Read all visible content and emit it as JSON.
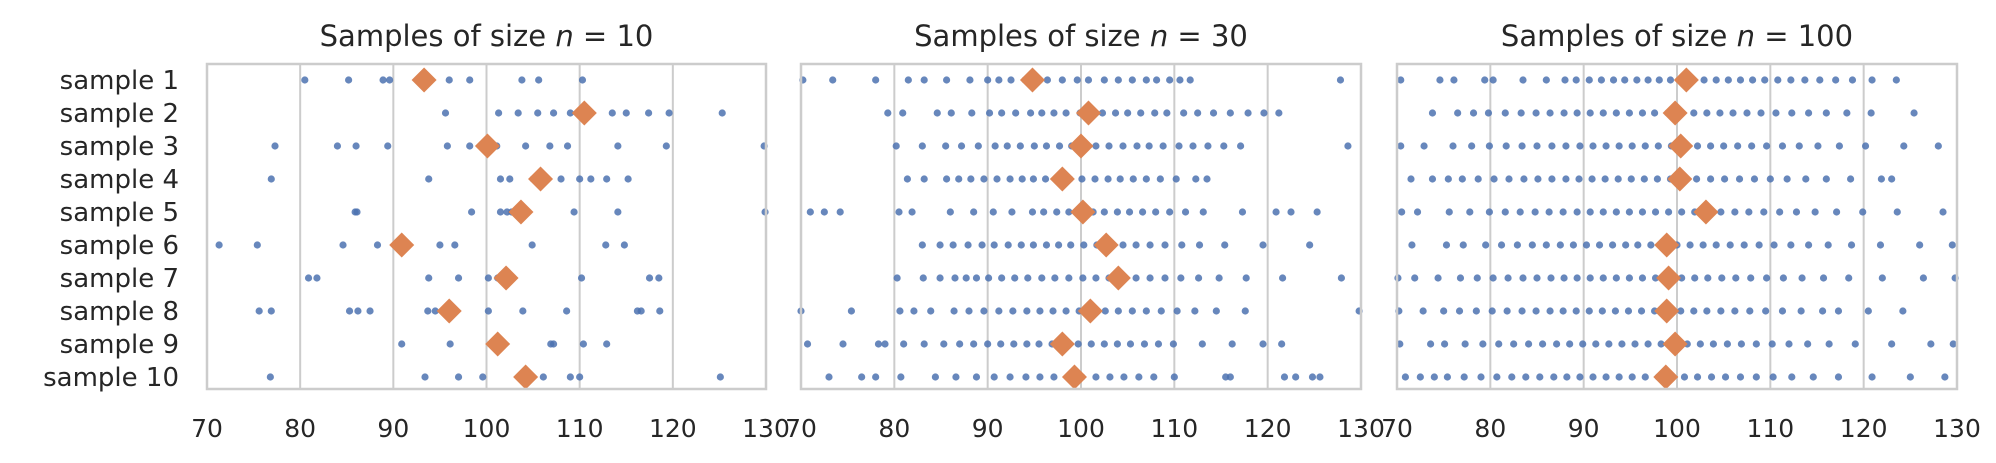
{
  "chart_data": [
    {
      "type": "scatter",
      "title": "Samples of size n = 10",
      "title_text": "Samples of size ",
      "title_var": "n",
      "title_eq": " = 10",
      "categories": [
        "sample 1",
        "sample 2",
        "sample 3",
        "sample 4",
        "sample 5",
        "sample 6",
        "sample 7",
        "sample 8",
        "sample 9",
        "sample 10"
      ],
      "xlim": [
        70,
        130
      ],
      "xticks": [
        70,
        80,
        90,
        100,
        110,
        120,
        130
      ],
      "grid": "vertical",
      "samples": [
        [
          80.5,
          85.2,
          88.9,
          89.6,
          93.1,
          96.0,
          98.2,
          103.8,
          105.6,
          110.3
        ],
        [
          95.6,
          101.3,
          103.4,
          105.5,
          107.2,
          109.0,
          111.0,
          113.5,
          115.0,
          117.4,
          119.6,
          125.3
        ],
        [
          77.3,
          84.0,
          86.0,
          89.4,
          95.8,
          98.2,
          99.4,
          101.1,
          104.2,
          106.8,
          108.7,
          114.1,
          119.3,
          129.8
        ],
        [
          76.9,
          93.8,
          101.5,
          102.5,
          105.0,
          108.0,
          110.0,
          111.2,
          112.9,
          115.2
        ],
        [
          85.9,
          86.1,
          98.4,
          101.5,
          102.2,
          102.7,
          109.4,
          114.1,
          129.9
        ],
        [
          71.3,
          75.4,
          84.6,
          88.3,
          91.0,
          95.0,
          96.6,
          104.9,
          112.8,
          114.8
        ],
        [
          80.9,
          81.8,
          93.8,
          97.0,
          100.2,
          101.2,
          102.4,
          110.2,
          117.5,
          118.5
        ],
        [
          75.6,
          76.9,
          85.3,
          86.2,
          87.5,
          93.7,
          94.5,
          100.2,
          103.9,
          108.6,
          116.2,
          116.6,
          118.6
        ],
        [
          90.9,
          96.1,
          101.0,
          101.8,
          106.9,
          107.2,
          110.4,
          112.9
        ],
        [
          76.8,
          93.4,
          97.0,
          99.6,
          103.6,
          106.1,
          109.0,
          110.0,
          125.1
        ]
      ],
      "means": [
        93.3,
        110.5,
        100.1,
        105.8,
        103.7,
        90.9,
        102.1,
        96.0,
        101.2,
        104.2
      ]
    },
    {
      "type": "scatter",
      "title": "Samples of size n = 30",
      "title_text": "Samples of size ",
      "title_var": "n",
      "title_eq": " = 30",
      "categories": [
        "sample 1",
        "sample 2",
        "sample 3",
        "sample 4",
        "sample 5",
        "sample 6",
        "sample 7",
        "sample 8",
        "sample 9",
        "sample 10"
      ],
      "xlim": [
        70,
        130
      ],
      "xticks": [
        70,
        80,
        90,
        100,
        110,
        120,
        130
      ],
      "grid": "vertical",
      "samples": [
        [
          70.2,
          73.4,
          78.0,
          81.5,
          83.2,
          85.6,
          88.1,
          90.0,
          91.2,
          92.5,
          94.0,
          95.5,
          96.4,
          98.0,
          99.6,
          100.8,
          102.5,
          104.0,
          105.5,
          107.0,
          108.1,
          109.5,
          110.6,
          111.7,
          127.8
        ],
        [
          79.3,
          80.9,
          84.6,
          86.1,
          88.3,
          90.2,
          91.5,
          93.0,
          94.6,
          95.8,
          97.1,
          98.4,
          99.9,
          100.6,
          102.3,
          103.7,
          105.0,
          106.4,
          107.9,
          109.2,
          111.0,
          112.5,
          114.2,
          116.0,
          117.9,
          119.6,
          121.2
        ],
        [
          80.2,
          83.0,
          85.5,
          87.2,
          89.0,
          90.8,
          92.1,
          93.5,
          95.0,
          96.3,
          97.7,
          99.0,
          100.4,
          101.6,
          103.0,
          104.5,
          106.0,
          107.3,
          108.8,
          110.5,
          112.0,
          113.6,
          115.3,
          117.1,
          128.6
        ],
        [
          81.4,
          83.2,
          85.6,
          86.9,
          88.2,
          89.6,
          91.0,
          92.4,
          93.7,
          94.9,
          96.2,
          97.5,
          98.8,
          100.1,
          101.5,
          102.9,
          104.2,
          105.6,
          107.0,
          108.5,
          110.2,
          112.3,
          113.5
        ],
        [
          71.0,
          72.5,
          74.2,
          80.5,
          81.9,
          86.0,
          88.5,
          90.6,
          92.6,
          94.8,
          96.0,
          97.4,
          98.7,
          100.0,
          101.3,
          102.5,
          103.9,
          105.2,
          106.6,
          108.0,
          109.5,
          111.2,
          113.1,
          117.3,
          120.9,
          122.5,
          125.3
        ],
        [
          83.0,
          84.9,
          86.3,
          87.9,
          89.4,
          90.7,
          92.2,
          93.6,
          94.9,
          96.3,
          97.6,
          98.9,
          100.3,
          101.7,
          103.1,
          104.5,
          105.9,
          107.4,
          109.0,
          110.8,
          112.7,
          115.4,
          119.5,
          124.5
        ],
        [
          80.3,
          83.1,
          84.9,
          86.5,
          87.7,
          88.8,
          90.1,
          91.5,
          92.9,
          94.3,
          95.8,
          97.2,
          98.7,
          100.2,
          101.6,
          103.0,
          104.5,
          105.9,
          107.4,
          109.0,
          110.7,
          112.6,
          114.8,
          117.7,
          121.6,
          127.9
        ],
        [
          70.0,
          75.4,
          80.6,
          82.1,
          83.9,
          86.4,
          88.0,
          89.6,
          91.2,
          92.7,
          94.2,
          95.6,
          97.0,
          98.4,
          99.8,
          101.2,
          102.6,
          104.0,
          105.5,
          107.0,
          108.6,
          110.3,
          112.2,
          114.5,
          117.6,
          129.8
        ],
        [
          70.7,
          74.5,
          78.3,
          79.0,
          81.0,
          83.2,
          85.3,
          87.0,
          88.5,
          90.0,
          91.4,
          92.8,
          94.2,
          95.5,
          96.9,
          98.3,
          99.7,
          101.1,
          102.5,
          103.9,
          105.3,
          106.8,
          108.3,
          109.9,
          113.0,
          116.2,
          119.5,
          121.5
        ],
        [
          73.0,
          76.5,
          78.0,
          80.7,
          84.4,
          86.6,
          88.8,
          90.7,
          92.4,
          94.1,
          95.6,
          97.1,
          98.6,
          100.1,
          101.6,
          103.1,
          104.6,
          106.2,
          107.8,
          110.0,
          115.5,
          116.0,
          121.8,
          123.0,
          124.8,
          125.6
        ]
      ],
      "means": [
        94.8,
        100.8,
        100.0,
        98.0,
        100.2,
        102.7,
        104.0,
        101.0,
        98.0,
        99.3
      ]
    },
    {
      "type": "scatter",
      "title": "Samples of size n = 100",
      "title_text": "Samples of size ",
      "title_var": "n",
      "title_eq": " = 100",
      "categories": [
        "sample 1",
        "sample 2",
        "sample 3",
        "sample 4",
        "sample 5",
        "sample 6",
        "sample 7",
        "sample 8",
        "sample 9",
        "sample 10"
      ],
      "xlim": [
        70,
        130
      ],
      "xticks": [
        70,
        80,
        90,
        100,
        110,
        120,
        130
      ],
      "grid": "vertical",
      "samples": [
        [
          70.4,
          74.6,
          76.1,
          79.4,
          80.3,
          83.5,
          86.0,
          88.0,
          89.2,
          90.6,
          91.9,
          93.2,
          94.4,
          95.7,
          96.9,
          98.1,
          99.3,
          100.5,
          101.7,
          102.9,
          104.2,
          105.5,
          106.8,
          108.1,
          109.4,
          110.8,
          112.2,
          113.7,
          115.3,
          117.0,
          118.8,
          120.9,
          123.5
        ],
        [
          73.8,
          76.5,
          78.2,
          79.8,
          81.6,
          83.3,
          84.9,
          86.4,
          87.9,
          89.3,
          90.7,
          92.1,
          93.5,
          94.9,
          96.3,
          97.6,
          99.0,
          100.4,
          101.8,
          103.2,
          104.6,
          106.0,
          107.5,
          109.0,
          110.6,
          112.3,
          114.1,
          116.0,
          118.2,
          120.8,
          125.4
        ],
        [
          70.4,
          72.9,
          76.0,
          78.0,
          79.9,
          81.7,
          83.4,
          85.0,
          86.6,
          88.1,
          89.6,
          91.0,
          92.4,
          93.8,
          95.2,
          96.6,
          98.0,
          99.4,
          100.8,
          102.2,
          103.6,
          105.0,
          106.5,
          108.0,
          109.6,
          111.3,
          113.1,
          115.1,
          117.4,
          120.2,
          124.3,
          128.0
        ],
        [
          71.5,
          73.8,
          75.5,
          77.0,
          78.7,
          80.4,
          82.0,
          83.6,
          85.1,
          86.6,
          88.1,
          89.5,
          90.9,
          92.3,
          93.7,
          95.1,
          96.5,
          97.9,
          99.3,
          100.7,
          102.1,
          103.6,
          105.1,
          106.7,
          108.3,
          110.0,
          111.8,
          113.8,
          116.0,
          118.6,
          121.9,
          123.0
        ],
        [
          70.5,
          72.2,
          75.6,
          77.8,
          79.9,
          81.6,
          83.2,
          84.8,
          86.3,
          87.8,
          89.3,
          90.7,
          92.1,
          93.5,
          94.9,
          96.3,
          97.7,
          99.1,
          100.5,
          101.9,
          103.3,
          104.7,
          106.2,
          107.7,
          109.3,
          111.0,
          112.8,
          114.8,
          117.1,
          119.9,
          123.6,
          128.5
        ],
        [
          71.6,
          75.3,
          77.1,
          79.5,
          81.2,
          82.9,
          84.5,
          86.0,
          87.5,
          88.9,
          90.3,
          91.7,
          93.1,
          94.5,
          95.8,
          97.2,
          98.6,
          100.0,
          101.4,
          102.8,
          104.2,
          105.7,
          107.2,
          108.8,
          110.4,
          112.2,
          114.1,
          116.2,
          118.7,
          121.8,
          126.0,
          129.5
        ],
        [
          70.1,
          71.9,
          74.4,
          76.8,
          78.6,
          80.3,
          81.9,
          83.5,
          85.0,
          86.5,
          87.9,
          89.3,
          90.7,
          92.1,
          93.5,
          94.9,
          96.3,
          97.7,
          99.1,
          100.5,
          101.9,
          103.3,
          104.8,
          106.3,
          107.9,
          109.6,
          111.4,
          113.4,
          115.7,
          118.4,
          122.0,
          126.4,
          129.8
        ],
        [
          70.2,
          72.8,
          75.0,
          76.7,
          78.5,
          80.2,
          81.8,
          83.4,
          84.9,
          86.4,
          87.8,
          89.2,
          90.6,
          92.0,
          93.4,
          94.8,
          96.2,
          97.6,
          99.0,
          100.4,
          101.8,
          103.2,
          104.7,
          106.2,
          107.8,
          109.5,
          111.3,
          113.3,
          115.6,
          117.3,
          120.5,
          124.2
        ],
        [
          70.3,
          73.6,
          75.1,
          77.3,
          79.2,
          80.9,
          82.5,
          84.1,
          85.6,
          87.1,
          88.5,
          89.9,
          91.3,
          92.7,
          94.1,
          95.5,
          96.9,
          98.3,
          99.7,
          101.1,
          102.5,
          103.9,
          105.4,
          106.9,
          108.5,
          110.2,
          112.0,
          114.0,
          116.3,
          119.1,
          123.0,
          127.2,
          129.6
        ],
        [
          70.9,
          72.5,
          74.0,
          75.4,
          77.2,
          79.0,
          80.7,
          82.3,
          83.8,
          85.3,
          86.8,
          88.2,
          89.6,
          91.0,
          92.4,
          93.8,
          95.2,
          96.6,
          98.0,
          99.4,
          100.8,
          102.2,
          103.7,
          105.2,
          106.8,
          108.5,
          110.3,
          112.3,
          114.6,
          117.3,
          120.9,
          125.0,
          128.7
        ]
      ],
      "means": [
        101.0,
        99.8,
        100.4,
        100.3,
        103.1,
        98.9,
        99.1,
        98.9,
        99.8,
        98.8
      ]
    }
  ],
  "colors": {
    "points": "#4c72b0",
    "means": "#dd8452",
    "grid": "#cccccc",
    "text": "#262626"
  }
}
